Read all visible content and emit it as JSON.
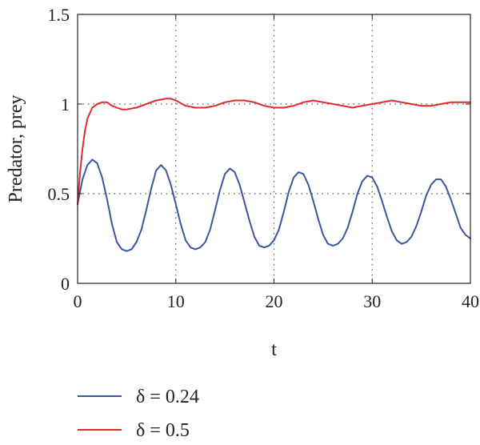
{
  "chart_data": {
    "type": "line",
    "xlabel": "t",
    "ylabel": "Predator, prey",
    "xlim": [
      0,
      40
    ],
    "ylim": [
      0,
      1.5
    ],
    "x_ticks": [
      "0",
      "10",
      "20",
      "30",
      "40"
    ],
    "y_ticks": [
      "0",
      "0.5",
      "1",
      "1.5"
    ],
    "grid": "dotted",
    "legend_position": "bottom-left",
    "series": [
      {
        "name": "δ = 0.24",
        "color": "#3a55a4",
        "points": [
          [
            0,
            0.44
          ],
          [
            0.5,
            0.58
          ],
          [
            1.0,
            0.66
          ],
          [
            1.5,
            0.69
          ],
          [
            2.0,
            0.67
          ],
          [
            2.5,
            0.59
          ],
          [
            3.0,
            0.47
          ],
          [
            3.5,
            0.33
          ],
          [
            4.0,
            0.23
          ],
          [
            4.5,
            0.19
          ],
          [
            5.0,
            0.18
          ],
          [
            5.5,
            0.19
          ],
          [
            6.0,
            0.23
          ],
          [
            6.5,
            0.3
          ],
          [
            7.0,
            0.41
          ],
          [
            7.5,
            0.53
          ],
          [
            8.0,
            0.63
          ],
          [
            8.5,
            0.66
          ],
          [
            9.0,
            0.63
          ],
          [
            9.5,
            0.55
          ],
          [
            10.0,
            0.44
          ],
          [
            10.5,
            0.33
          ],
          [
            11.0,
            0.24
          ],
          [
            11.5,
            0.2
          ],
          [
            12.0,
            0.19
          ],
          [
            12.5,
            0.2
          ],
          [
            13.0,
            0.23
          ],
          [
            13.5,
            0.3
          ],
          [
            14.0,
            0.41
          ],
          [
            14.5,
            0.52
          ],
          [
            15.0,
            0.61
          ],
          [
            15.5,
            0.64
          ],
          [
            16.0,
            0.62
          ],
          [
            16.5,
            0.55
          ],
          [
            17.0,
            0.45
          ],
          [
            17.5,
            0.35
          ],
          [
            18.0,
            0.26
          ],
          [
            18.5,
            0.21
          ],
          [
            19.0,
            0.2
          ],
          [
            19.5,
            0.21
          ],
          [
            20.0,
            0.24
          ],
          [
            20.5,
            0.3
          ],
          [
            21.0,
            0.4
          ],
          [
            21.5,
            0.51
          ],
          [
            22.0,
            0.59
          ],
          [
            22.5,
            0.62
          ],
          [
            23.0,
            0.61
          ],
          [
            23.5,
            0.55
          ],
          [
            24.0,
            0.46
          ],
          [
            24.5,
            0.36
          ],
          [
            25.0,
            0.27
          ],
          [
            25.5,
            0.22
          ],
          [
            26.0,
            0.21
          ],
          [
            26.5,
            0.22
          ],
          [
            27.0,
            0.25
          ],
          [
            27.5,
            0.31
          ],
          [
            28.0,
            0.4
          ],
          [
            28.5,
            0.5
          ],
          [
            29.0,
            0.57
          ],
          [
            29.5,
            0.6
          ],
          [
            30.0,
            0.59
          ],
          [
            30.5,
            0.54
          ],
          [
            31.0,
            0.46
          ],
          [
            31.5,
            0.37
          ],
          [
            32.0,
            0.29
          ],
          [
            32.5,
            0.24
          ],
          [
            33.0,
            0.22
          ],
          [
            33.5,
            0.23
          ],
          [
            34.0,
            0.26
          ],
          [
            34.5,
            0.32
          ],
          [
            35.0,
            0.4
          ],
          [
            35.5,
            0.49
          ],
          [
            36.0,
            0.55
          ],
          [
            36.5,
            0.58
          ],
          [
            37.0,
            0.58
          ],
          [
            37.5,
            0.54
          ],
          [
            38.0,
            0.47
          ],
          [
            38.5,
            0.39
          ],
          [
            39.0,
            0.31
          ],
          [
            39.5,
            0.27
          ],
          [
            40.0,
            0.25
          ]
        ]
      },
      {
        "name": "δ = 0.5",
        "color": "#e02a2a",
        "points": [
          [
            0,
            0.44
          ],
          [
            0.25,
            0.62
          ],
          [
            0.5,
            0.75
          ],
          [
            0.75,
            0.85
          ],
          [
            1.0,
            0.92
          ],
          [
            1.5,
            0.98
          ],
          [
            2.0,
            1.0
          ],
          [
            2.5,
            1.01
          ],
          [
            3.0,
            1.01
          ],
          [
            3.5,
            0.99
          ],
          [
            4.0,
            0.98
          ],
          [
            4.5,
            0.97
          ],
          [
            5.0,
            0.97
          ],
          [
            6.0,
            0.98
          ],
          [
            7.0,
            1.0
          ],
          [
            8.0,
            1.02
          ],
          [
            9.0,
            1.03
          ],
          [
            9.5,
            1.03
          ],
          [
            10.0,
            1.02
          ],
          [
            11.0,
            0.99
          ],
          [
            12.0,
            0.98
          ],
          [
            13.0,
            0.98
          ],
          [
            14.0,
            0.99
          ],
          [
            15.0,
            1.01
          ],
          [
            16.0,
            1.02
          ],
          [
            17.0,
            1.02
          ],
          [
            18.0,
            1.01
          ],
          [
            19.0,
            0.99
          ],
          [
            20.0,
            0.98
          ],
          [
            21.0,
            0.98
          ],
          [
            22.0,
            0.99
          ],
          [
            23.0,
            1.01
          ],
          [
            24.0,
            1.02
          ],
          [
            25.0,
            1.01
          ],
          [
            26.0,
            1.0
          ],
          [
            27.0,
            0.99
          ],
          [
            28.0,
            0.98
          ],
          [
            29.0,
            0.99
          ],
          [
            30.0,
            1.0
          ],
          [
            31.0,
            1.01
          ],
          [
            32.0,
            1.02
          ],
          [
            33.0,
            1.01
          ],
          [
            34.0,
            1.0
          ],
          [
            35.0,
            0.99
          ],
          [
            36.0,
            0.99
          ],
          [
            37.0,
            1.0
          ],
          [
            38.0,
            1.01
          ],
          [
            39.0,
            1.01
          ],
          [
            40.0,
            1.01
          ]
        ]
      }
    ]
  }
}
